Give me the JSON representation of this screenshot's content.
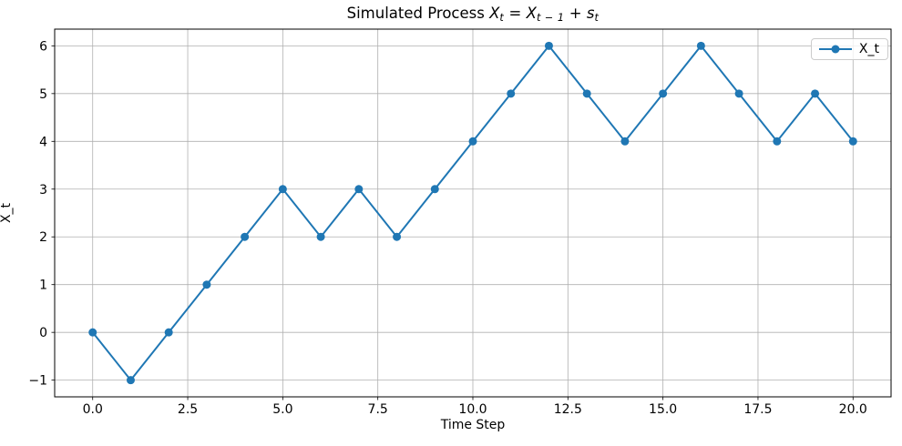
{
  "figure": {
    "background": "#ffffff"
  },
  "chart_data": {
    "type": "line",
    "title": "Simulated Process X_t = X_{t-1} + s_t",
    "title_segments": [
      {
        "text": "Simulated Process ",
        "italic": false,
        "sub": false
      },
      {
        "text": "X",
        "italic": true,
        "sub": false
      },
      {
        "text": "t",
        "italic": true,
        "sub": true
      },
      {
        "text": " = ",
        "italic": false,
        "sub": false
      },
      {
        "text": "X",
        "italic": true,
        "sub": false
      },
      {
        "text": "t − 1",
        "italic": true,
        "sub": true
      },
      {
        "text": " + ",
        "italic": false,
        "sub": false
      },
      {
        "text": "s",
        "italic": true,
        "sub": false
      },
      {
        "text": "t",
        "italic": true,
        "sub": true
      }
    ],
    "xlabel": "Time Step",
    "ylabel": "X_t",
    "x": [
      0,
      1,
      2,
      3,
      4,
      5,
      6,
      7,
      8,
      9,
      10,
      11,
      12,
      13,
      14,
      15,
      16,
      17,
      18,
      19,
      20
    ],
    "series": [
      {
        "name": "X_t",
        "color": "#1f77b4",
        "marker": "circle",
        "values": [
          0,
          -1,
          0,
          1,
          2,
          3,
          2,
          3,
          2,
          3,
          4,
          5,
          6,
          5,
          4,
          5,
          6,
          5,
          4,
          5,
          4
        ]
      }
    ],
    "xlim": [
      -1,
      21
    ],
    "ylim": [
      -1.35,
      6.35
    ],
    "xticks": {
      "values": [
        0,
        2.5,
        5,
        7.5,
        10,
        12.5,
        15,
        17.5,
        20
      ],
      "labels": [
        "0.0",
        "2.5",
        "5.0",
        "7.5",
        "10.0",
        "12.5",
        "15.0",
        "17.5",
        "20.0"
      ]
    },
    "yticks": {
      "values": [
        -1,
        0,
        1,
        2,
        3,
        4,
        5,
        6
      ],
      "labels": [
        "−1",
        "0",
        "1",
        "2",
        "3",
        "4",
        "5",
        "6"
      ]
    },
    "grid": true,
    "grid_color": "#b0b0b0",
    "frame_color": "#000000",
    "legend": {
      "location": "upper right",
      "entries": [
        "X_t"
      ]
    }
  }
}
